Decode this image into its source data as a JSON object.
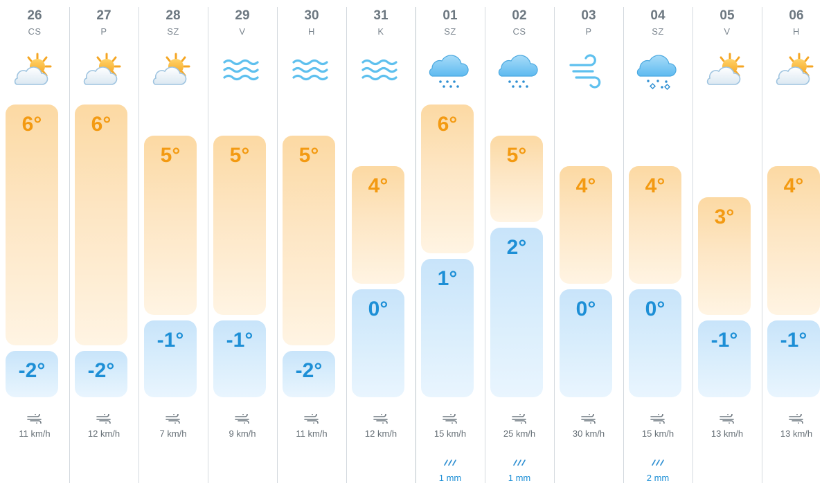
{
  "days": [
    {
      "date": "26",
      "dow": "CS",
      "icon": "partly-sunny-icon",
      "max": "6°",
      "min": "-2°",
      "max_c": 6,
      "min_c": -2,
      "wind": "11 km/h",
      "rain": ""
    },
    {
      "date": "27",
      "dow": "P",
      "icon": "partly-sunny-icon",
      "max": "6°",
      "min": "-2°",
      "max_c": 6,
      "min_c": -2,
      "wind": "12 km/h",
      "rain": ""
    },
    {
      "date": "28",
      "dow": "SZ",
      "icon": "partly-sunny-icon",
      "max": "5°",
      "min": "-1°",
      "max_c": 5,
      "min_c": -1,
      "wind": "7 km/h",
      "rain": ""
    },
    {
      "date": "29",
      "dow": "V",
      "icon": "fog-icon",
      "max": "5°",
      "min": "-1°",
      "max_c": 5,
      "min_c": -1,
      "wind": "9 km/h",
      "rain": ""
    },
    {
      "date": "30",
      "dow": "H",
      "icon": "fog-icon",
      "max": "5°",
      "min": "-2°",
      "max_c": 5,
      "min_c": -2,
      "wind": "11 km/h",
      "rain": ""
    },
    {
      "date": "31",
      "dow": "K",
      "icon": "fog-icon",
      "max": "4°",
      "min": "0°",
      "max_c": 4,
      "min_c": 0,
      "wind": "12 km/h",
      "rain": ""
    },
    {
      "date": "01",
      "dow": "SZ",
      "icon": "rain-cloud-icon",
      "max": "6°",
      "min": "1°",
      "max_c": 6,
      "min_c": 1,
      "wind": "15 km/h",
      "rain": "1 mm"
    },
    {
      "date": "02",
      "dow": "CS",
      "icon": "rain-cloud-icon",
      "max": "5°",
      "min": "2°",
      "max_c": 5,
      "min_c": 2,
      "wind": "25 km/h",
      "rain": "1 mm"
    },
    {
      "date": "03",
      "dow": "P",
      "icon": "wind-icon",
      "max": "4°",
      "min": "0°",
      "max_c": 4,
      "min_c": 0,
      "wind": "30 km/h",
      "rain": ""
    },
    {
      "date": "04",
      "dow": "SZ",
      "icon": "sleet-cloud-icon",
      "max": "4°",
      "min": "0°",
      "max_c": 4,
      "min_c": 0,
      "wind": "15 km/h",
      "rain": "2 mm"
    },
    {
      "date": "05",
      "dow": "V",
      "icon": "partly-sunny-icon",
      "max": "3°",
      "min": "-1°",
      "max_c": 3,
      "min_c": -1,
      "wind": "13 km/h",
      "rain": ""
    },
    {
      "date": "06",
      "dow": "H",
      "icon": "partly-sunny-icon",
      "max": "4°",
      "min": "-1°",
      "max_c": 4,
      "min_c": -1,
      "wind": "13 km/h",
      "rain": ""
    }
  ],
  "colors": {
    "max_text": "#f39a12",
    "min_text": "#1d8fd6",
    "rain_text": "#1d8fd6"
  }
}
